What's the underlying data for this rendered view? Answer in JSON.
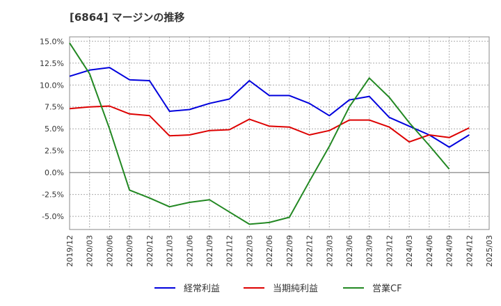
{
  "title": "[6864]  マージンの推移",
  "chart_data": {
    "type": "line",
    "title": "[6864]  マージンの推移",
    "xlabel": "",
    "ylabel": "",
    "categories": [
      "2019/12",
      "2020/03",
      "2020/06",
      "2020/09",
      "2020/12",
      "2021/03",
      "2021/06",
      "2021/09",
      "2021/12",
      "2022/03",
      "2022/06",
      "2022/09",
      "2022/12",
      "2023/03",
      "2023/06",
      "2023/09",
      "2023/12",
      "2024/03",
      "2024/06",
      "2024/09",
      "2024/12",
      "2025/03"
    ],
    "y_ticks": [
      "15.0%",
      "12.5%",
      "10.0%",
      "7.5%",
      "5.0%",
      "2.5%",
      "0.0%",
      "-2.5%",
      "-5.0%"
    ],
    "y_tick_values": [
      15.0,
      12.5,
      10.0,
      7.5,
      5.0,
      2.5,
      0.0,
      -2.5,
      -5.0
    ],
    "ylim": [
      -6.5,
      15.5
    ],
    "grid": true,
    "legend_position": "bottom",
    "series": [
      {
        "name": "経常利益",
        "color": "#0000dd",
        "values": [
          11.0,
          11.7,
          12.0,
          10.6,
          10.5,
          7.0,
          7.2,
          7.9,
          8.4,
          10.5,
          8.8,
          8.8,
          7.9,
          6.5,
          8.3,
          8.7,
          6.3,
          5.3,
          4.3,
          2.9,
          4.3,
          null
        ]
      },
      {
        "name": "当期純利益",
        "color": "#dd0000",
        "values": [
          7.3,
          7.5,
          7.6,
          6.7,
          6.5,
          4.2,
          4.3,
          4.8,
          4.9,
          6.1,
          5.3,
          5.2,
          4.3,
          4.8,
          6.0,
          6.0,
          5.2,
          3.5,
          4.3,
          4.0,
          5.1,
          null
        ]
      },
      {
        "name": "営業CF",
        "color": "#228822",
        "values": [
          14.8,
          11.3,
          5.0,
          -2.0,
          -2.9,
          -3.9,
          -3.4,
          -3.1,
          -4.5,
          -5.9,
          -5.7,
          -5.1,
          -1.0,
          3.0,
          7.5,
          10.8,
          8.6,
          5.7,
          3.1,
          0.4,
          null,
          null
        ]
      }
    ]
  }
}
